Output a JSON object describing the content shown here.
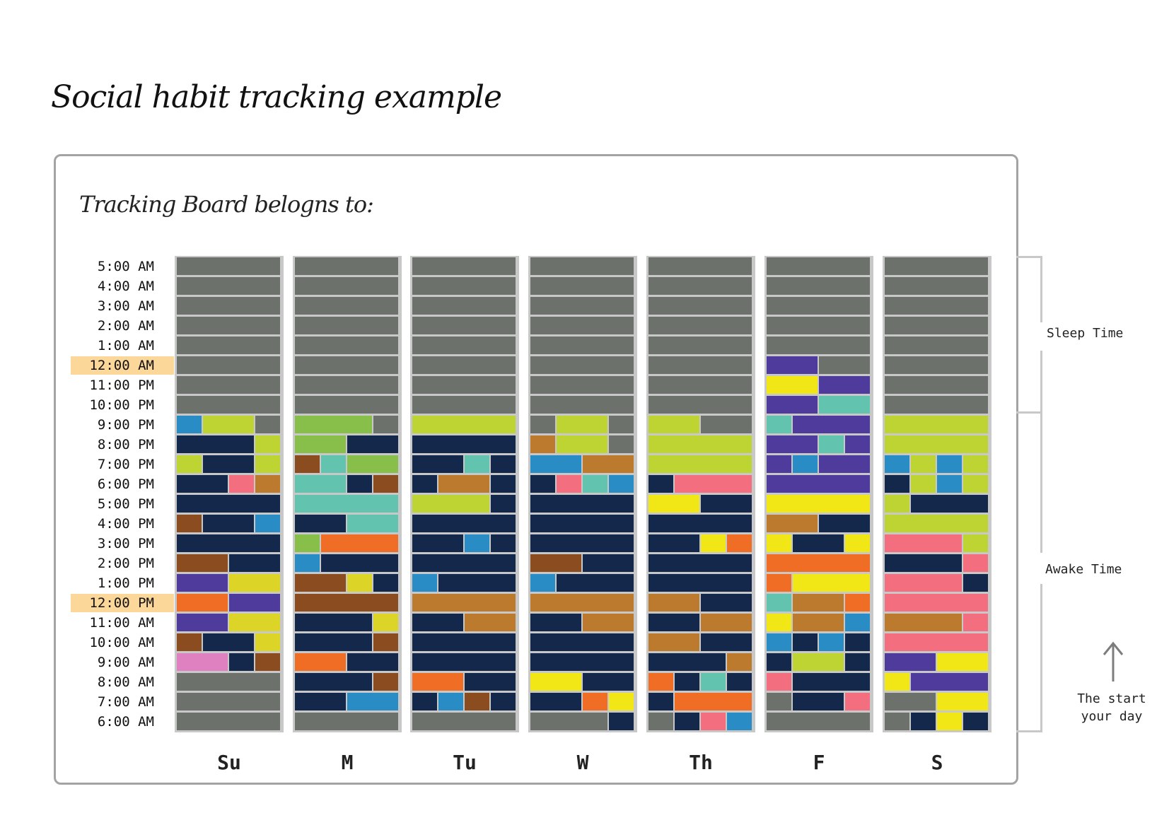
{
  "title": "Social habit tracking example",
  "board_owner_label": "Tracking Board belogns to:",
  "times": [
    {
      "label": "5:00 AM",
      "highlight": false
    },
    {
      "label": "4:00 AM",
      "highlight": false
    },
    {
      "label": "3:00 AM",
      "highlight": false
    },
    {
      "label": "2:00 AM",
      "highlight": false
    },
    {
      "label": "1:00 AM",
      "highlight": false
    },
    {
      "label": "12:00 AM",
      "highlight": true
    },
    {
      "label": "11:00 PM",
      "highlight": false
    },
    {
      "label": "10:00 PM",
      "highlight": false
    },
    {
      "label": "9:00 PM",
      "highlight": false
    },
    {
      "label": "8:00 PM",
      "highlight": false
    },
    {
      "label": "7:00 PM",
      "highlight": false
    },
    {
      "label": "6:00 PM",
      "highlight": false
    },
    {
      "label": "5:00 PM",
      "highlight": false
    },
    {
      "label": "4:00 PM",
      "highlight": false
    },
    {
      "label": "3:00 PM",
      "highlight": false
    },
    {
      "label": "2:00 PM",
      "highlight": false
    },
    {
      "label": "1:00 PM",
      "highlight": false
    },
    {
      "label": "12:00 PM",
      "highlight": true
    },
    {
      "label": "11:00 AM",
      "highlight": false
    },
    {
      "label": "10:00 AM",
      "highlight": false
    },
    {
      "label": "9:00 AM",
      "highlight": false
    },
    {
      "label": "8:00 AM",
      "highlight": false
    },
    {
      "label": "7:00 AM",
      "highlight": false
    },
    {
      "label": "6:00 AM",
      "highlight": false
    }
  ],
  "days": [
    "Su",
    "M",
    "Tu",
    "W",
    "Th",
    "F",
    "S"
  ],
  "sleep_label": "Sleep Time",
  "awake_label": "Awake Time",
  "start_note_line1": "The start",
  "start_note_line2": "your day",
  "colors": {
    "G": "#6d716c",
    "N": "#14284b",
    "L": "#bdd433",
    "K": "#88bf4b",
    "T": "#62c4ae",
    "B": "#2a8cc4",
    "O": "#bb7a2e",
    "R": "#8b4c20",
    "P": "#f36e7f",
    "Y": "#f2e716",
    "U": "#dcd426",
    "V": "#4e3b9b",
    "E": "#ef6d24",
    "M": "#df80c0"
  },
  "grid": [
    [
      "GGGG",
      "GGGG",
      "GGGG",
      "GGGG",
      "GGGG",
      "GGGG",
      "GGGG"
    ],
    [
      "GGGG",
      "GGGG",
      "GGGG",
      "GGGG",
      "GGGG",
      "GGGG",
      "GGGG"
    ],
    [
      "GGGG",
      "GGGG",
      "GGGG",
      "GGGG",
      "GGGG",
      "GGGG",
      "GGGG"
    ],
    [
      "GGGG",
      "GGGG",
      "GGGG",
      "GGGG",
      "GGGG",
      "GGGG",
      "GGGG"
    ],
    [
      "GGGG",
      "GGGG",
      "GGGG",
      "GGGG",
      "GGGG",
      "GGGG",
      "GGGG"
    ],
    [
      "GGGG",
      "GGGG",
      "GGGG",
      "GGGG",
      "GGGG",
      "VVGG",
      "GGGG"
    ],
    [
      "GGGG",
      "GGGG",
      "GGGG",
      "GGGG",
      "GGGG",
      "YYVV",
      "GGGG"
    ],
    [
      "GGGG",
      "GGGG",
      "GGGG",
      "GGGG",
      "GGGG",
      "VVTT",
      "GGGG"
    ],
    [
      "BLLG",
      "KKKG",
      "LLLL",
      "GLLG",
      "LLGG",
      "TVVV",
      "LLLL"
    ],
    [
      "NNNL",
      "KKNN",
      "NNNN",
      "OLLG",
      "LLLL",
      "VVTV",
      "LLLL"
    ],
    [
      "LNNL",
      "RTKK",
      "NNTN",
      "BBOO",
      "LLLL",
      "VBVV",
      "BLBL"
    ],
    [
      "NNPO",
      "TTNR",
      "NOON",
      "NPTB",
      "NPPP",
      "VVVV",
      "NLBL"
    ],
    [
      "NNNN",
      "TTTT",
      "LLLN",
      "NNNN",
      "YYNN",
      "YYYY",
      "LNNN"
    ],
    [
      "RNNB",
      "NNTT",
      "NNNN",
      "NNNN",
      "NNNN",
      "OONN",
      "LLLL"
    ],
    [
      "NNNN",
      "KEEE",
      "NNBN",
      "NNNN",
      "NNYE",
      "YNNY",
      "PPPL"
    ],
    [
      "RRNN",
      "BNNN",
      "NNNN",
      "RRNN",
      "NNNN",
      "EEEE",
      "NNNP"
    ],
    [
      "VVUU",
      "RRUN",
      "BNNN",
      "BNNN",
      "NNNN",
      "EYYY",
      "PPPN"
    ],
    [
      "EEVV",
      "RRRR",
      "OOOO",
      "OOOO",
      "OONN",
      "TOOE",
      "PPPP"
    ],
    [
      "VVUU",
      "NNNU",
      "NNOO",
      "NNOO",
      "NNOO",
      "YOOB",
      "OOOP"
    ],
    [
      "RNNU",
      "NNNR",
      "NNNN",
      "NNNN",
      "OONN",
      "BNBN",
      "PPPP"
    ],
    [
      "MMNR",
      "EENN",
      "NNNN",
      "NNNN",
      "NNNO",
      "NLLN",
      "VVYY"
    ],
    [
      "GGGG",
      "NNNR",
      "EENN",
      "YYNN",
      "ENTN",
      "PNNN",
      "YVVV"
    ],
    [
      "GGGG",
      "NNBB",
      "NBRN",
      "NNEY",
      "NEEE",
      "GNNP",
      "GGYY"
    ],
    [
      "GGGG",
      "GGGG",
      "GGGG",
      "GGGN",
      "GNPB",
      "GGGG",
      "GNYN"
    ]
  ]
}
